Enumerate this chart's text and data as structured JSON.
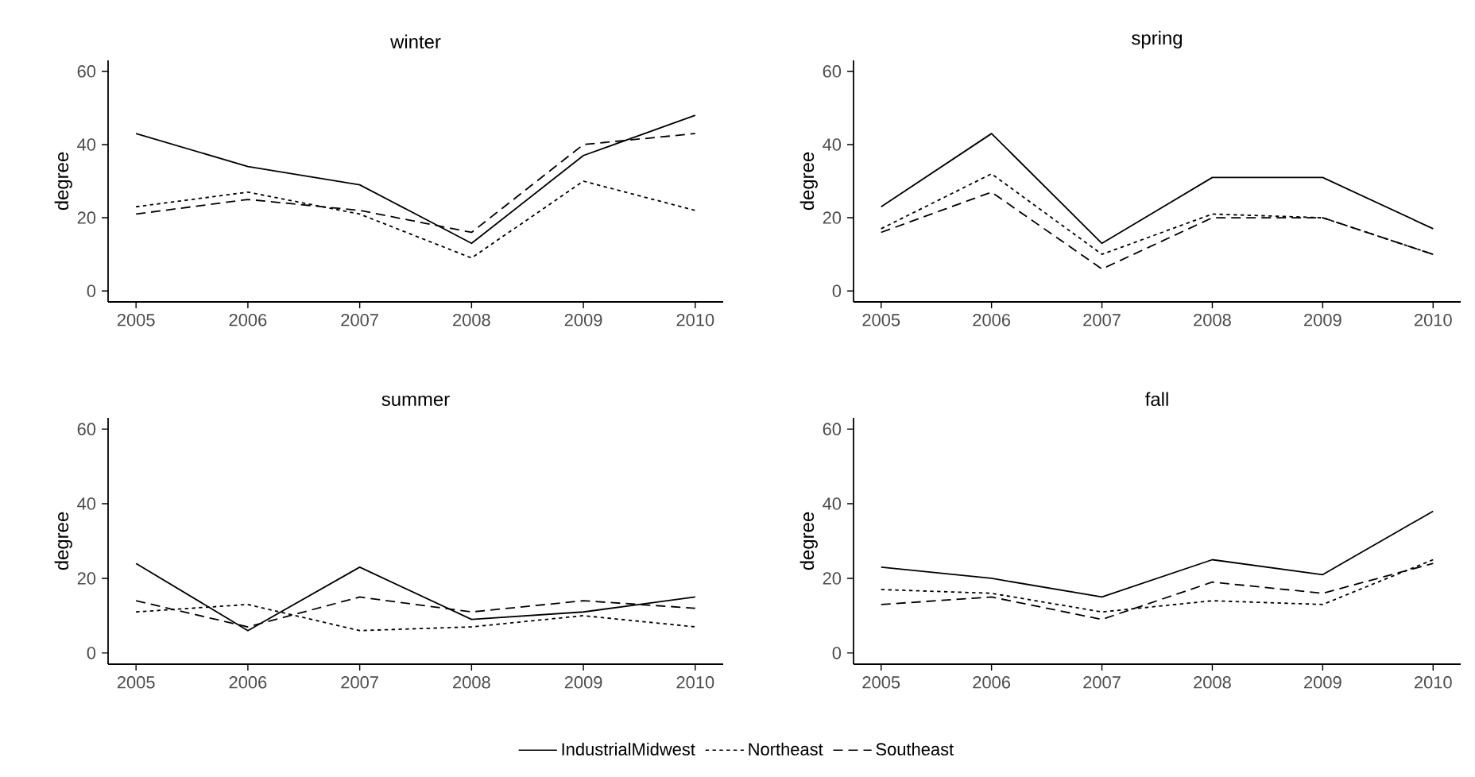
{
  "chart_data": [
    {
      "type": "line",
      "title": "winter",
      "ylabel": "degree",
      "x": [
        2005,
        2006,
        2007,
        2008,
        2009,
        2010
      ],
      "xlim": [
        2004.75,
        2010.25
      ],
      "ylim": [
        -3,
        63
      ],
      "xticks": [
        2005,
        2006,
        2007,
        2008,
        2009,
        2010
      ],
      "yticks": [
        0,
        20,
        40,
        60
      ],
      "series": [
        {
          "color": "#000000",
          "line_style": "solid",
          "values": [
            43,
            34,
            29,
            13,
            37,
            48
          ]
        },
        {
          "color": "#000000",
          "line_style": "dotted",
          "values": [
            23,
            27,
            21,
            9,
            30,
            22
          ]
        },
        {
          "color": "#000000",
          "line_style": "dashed",
          "values": [
            21,
            25,
            22,
            16,
            40,
            43
          ]
        }
      ]
    },
    {
      "type": "line",
      "title": "spring",
      "ylabel": "degree",
      "x": [
        2005,
        2006,
        2007,
        2008,
        2009,
        2010
      ],
      "xlim": [
        2004.75,
        2010.25
      ],
      "ylim": [
        -3,
        63
      ],
      "xticks": [
        2005,
        2006,
        2007,
        2008,
        2009,
        2010
      ],
      "yticks": [
        0,
        20,
        40,
        60
      ],
      "series": [
        {
          "color": "#000000",
          "line_style": "solid",
          "values": [
            23,
            43,
            13,
            31,
            31,
            17
          ]
        },
        {
          "color": "#000000",
          "line_style": "dotted",
          "values": [
            17,
            32,
            10,
            21,
            20,
            10
          ]
        },
        {
          "color": "#000000",
          "line_style": "dashed",
          "values": [
            16,
            27,
            6,
            20,
            20,
            10
          ]
        }
      ]
    },
    {
      "type": "line",
      "title": "summer",
      "ylabel": "degree",
      "x": [
        2005,
        2006,
        2007,
        2008,
        2009,
        2010
      ],
      "xlim": [
        2004.75,
        2010.25
      ],
      "ylim": [
        -3,
        63
      ],
      "xticks": [
        2005,
        2006,
        2007,
        2008,
        2009,
        2010
      ],
      "yticks": [
        0,
        20,
        40,
        60
      ],
      "series": [
        {
          "color": "#000000",
          "line_style": "solid",
          "values": [
            24,
            6,
            23,
            9,
            11,
            15
          ]
        },
        {
          "color": "#000000",
          "line_style": "dotted",
          "values": [
            11,
            13,
            6,
            7,
            10,
            7
          ]
        },
        {
          "color": "#000000",
          "line_style": "dashed",
          "values": [
            14,
            7,
            15,
            11,
            14,
            12
          ]
        }
      ]
    },
    {
      "type": "line",
      "title": "fall",
      "ylabel": "degree",
      "x": [
        2005,
        2006,
        2007,
        2008,
        2009,
        2010
      ],
      "xlim": [
        2004.75,
        2010.25
      ],
      "ylim": [
        -3,
        63
      ],
      "xticks": [
        2005,
        2006,
        2007,
        2008,
        2009,
        2010
      ],
      "yticks": [
        0,
        20,
        40,
        60
      ],
      "legend": "bottom",
      "series": [
        {
          "name": "IndustrialMidwest",
          "color": "#000000",
          "line_style": "solid",
          "values": [
            23,
            20,
            15,
            25,
            21,
            38
          ]
        },
        {
          "name": "Northeast",
          "color": "#000000",
          "line_style": "dotted",
          "values": [
            17,
            16,
            11,
            14,
            13,
            25
          ]
        },
        {
          "name": "Southeast",
          "color": "#000000",
          "line_style": "dashed",
          "values": [
            13,
            15,
            9,
            19,
            16,
            24
          ]
        }
      ]
    }
  ]
}
